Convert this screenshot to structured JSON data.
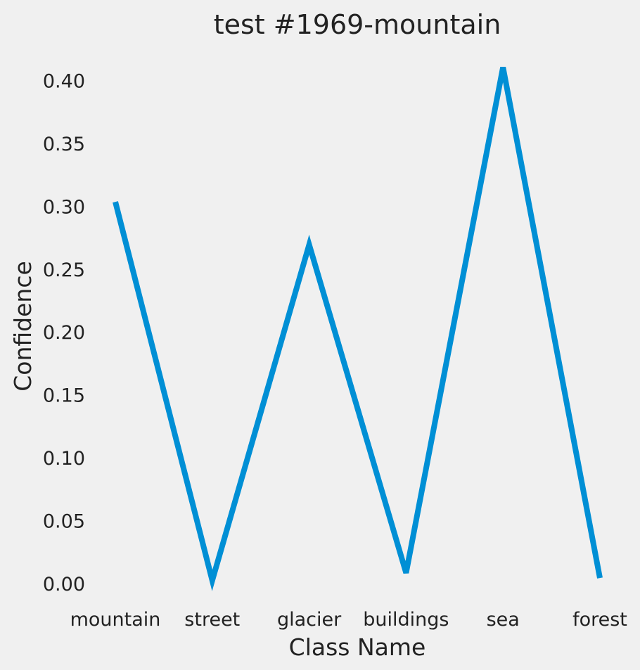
{
  "chart_data": {
    "type": "line",
    "title": "test #1969-mountain",
    "xlabel": "Class Name",
    "ylabel": "Confidence",
    "categories": [
      "mountain",
      "street",
      "glacier",
      "buildings",
      "sea",
      "forest"
    ],
    "series": [
      {
        "values": [
          0.304,
          0.003,
          0.27,
          0.009,
          0.411,
          0.005
        ]
      }
    ],
    "yticks": [
      "0.00",
      "0.05",
      "0.10",
      "0.15",
      "0.20",
      "0.25",
      "0.30",
      "0.35",
      "0.40"
    ],
    "ylim": [
      0,
      0.42
    ],
    "grid": false,
    "line_color": "#008fd5",
    "background_color": "#f0f0f0"
  }
}
